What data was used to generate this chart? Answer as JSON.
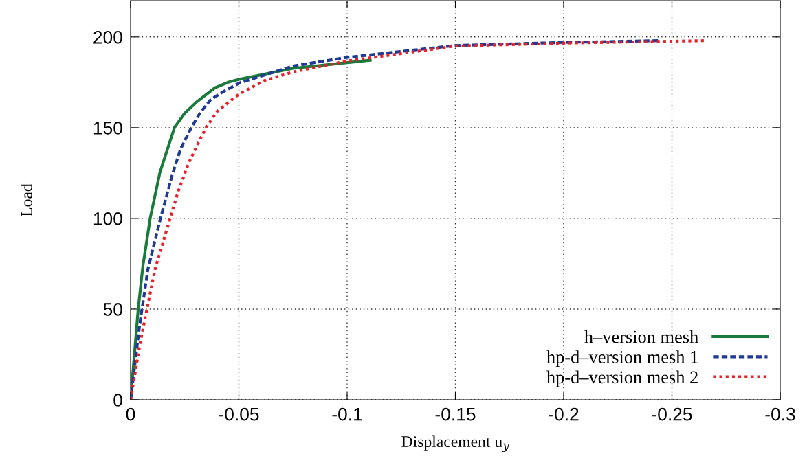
{
  "chart_data": {
    "type": "line",
    "xlabel": "Displacement u$_{y}$",
    "ylabel": "Load",
    "xlim": [
      0,
      -0.3
    ],
    "ylim": [
      0,
      220
    ],
    "xticks": [
      0,
      -0.05,
      -0.1,
      -0.15,
      -0.2,
      -0.25,
      -0.3
    ],
    "yticks": [
      0,
      50,
      100,
      150,
      200
    ],
    "grid": true,
    "legend": "bottom right",
    "series": [
      {
        "name": "h–version mesh",
        "color": "#1a7a3c",
        "line_style": "solid",
        "x": [
          0,
          -0.0035,
          -0.0057,
          -0.0091,
          -0.0136,
          -0.0203,
          -0.025,
          -0.0303,
          -0.039,
          -0.045,
          -0.0504,
          -0.075,
          -0.1113
        ],
        "values": [
          0,
          49.8,
          73.9,
          100.4,
          125.6,
          150.2,
          158,
          164,
          172,
          175,
          176.7,
          182.7,
          187.3
        ]
      },
      {
        "name": "hp-d–version mesh 1",
        "color": "#1f3a93",
        "line_style": "dashed",
        "x": [
          0,
          -0.0041,
          -0.008,
          -0.0136,
          -0.019,
          -0.023,
          -0.028,
          -0.032,
          -0.037,
          -0.043,
          -0.0504,
          -0.075,
          -0.0996,
          -0.15,
          -0.2,
          -0.245
        ],
        "values": [
          0,
          40.5,
          72,
          99,
          123,
          138,
          150,
          158,
          165.5,
          170,
          174.7,
          184,
          188.7,
          195.3,
          197,
          198
        ]
      },
      {
        "name": "hp-d–version mesh 2",
        "color": "#e8202a",
        "line_style": "dotted",
        "x": [
          0,
          -0.0046,
          -0.0113,
          -0.018,
          -0.022,
          -0.027,
          -0.031,
          -0.0348,
          -0.04,
          -0.0504,
          -0.062,
          -0.075,
          -0.0996,
          -0.15,
          -0.2,
          -0.266
        ],
        "values": [
          0,
          32.6,
          72,
          99,
          115,
          131,
          141,
          150,
          159,
          168.8,
          176,
          180.7,
          186.7,
          195,
          196.6,
          198
        ]
      }
    ]
  }
}
